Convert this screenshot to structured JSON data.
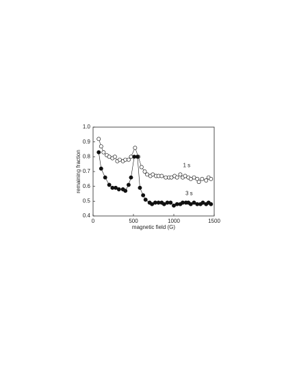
{
  "chart_data": {
    "type": "scatter",
    "xlabel": "magnetic field (G)",
    "ylabel": "remaining fraction",
    "xlim": [
      0,
      1500
    ],
    "xticks": [
      0,
      500,
      1000,
      1500
    ],
    "ylim": [
      0.4,
      1.0
    ],
    "yticks": [
      0.4,
      0.5,
      0.6,
      0.7,
      0.8,
      0.9,
      {
        "value": 1,
        "label": "1.0"
      }
    ],
    "series": [
      {
        "name": "1 s",
        "marker": "open",
        "color": "#222",
        "x": [
          70,
          100,
          130,
          170,
          200,
          240,
          270,
          300,
          330,
          370,
          400,
          440,
          470,
          520,
          560,
          600,
          640,
          670,
          710,
          740,
          780,
          810,
          850,
          900,
          940,
          970,
          1010,
          1040,
          1080,
          1110,
          1140,
          1180,
          1210,
          1250,
          1290,
          1310,
          1350,
          1400,
          1430,
          1460
        ],
        "values": [
          0.92,
          0.87,
          0.83,
          0.81,
          0.8,
          0.79,
          0.8,
          0.77,
          0.78,
          0.77,
          0.78,
          0.78,
          0.8,
          0.86,
          0.8,
          0.73,
          0.7,
          0.68,
          0.67,
          0.68,
          0.67,
          0.67,
          0.67,
          0.66,
          0.66,
          0.66,
          0.67,
          0.66,
          0.68,
          0.66,
          0.67,
          0.66,
          0.65,
          0.66,
          0.65,
          0.63,
          0.65,
          0.64,
          0.66,
          0.65
        ]
      },
      {
        "name": "3 s",
        "marker": "filled",
        "color": "#111",
        "x": [
          70,
          100,
          150,
          200,
          240,
          280,
          320,
          370,
          400,
          440,
          470,
          510,
          550,
          580,
          620,
          650,
          700,
          730,
          770,
          810,
          850,
          880,
          920,
          960,
          1000,
          1040,
          1080,
          1110,
          1150,
          1180,
          1210,
          1250,
          1290,
          1330,
          1360,
          1400,
          1430,
          1460
        ],
        "values": [
          0.83,
          0.72,
          0.66,
          0.61,
          0.59,
          0.59,
          0.58,
          0.58,
          0.57,
          0.61,
          0.66,
          0.8,
          0.8,
          0.59,
          0.54,
          0.51,
          0.49,
          0.48,
          0.49,
          0.49,
          0.49,
          0.48,
          0.49,
          0.49,
          0.47,
          0.48,
          0.48,
          0.49,
          0.49,
          0.49,
          0.48,
          0.49,
          0.48,
          0.48,
          0.49,
          0.48,
          0.49,
          0.48
        ]
      }
    ]
  }
}
